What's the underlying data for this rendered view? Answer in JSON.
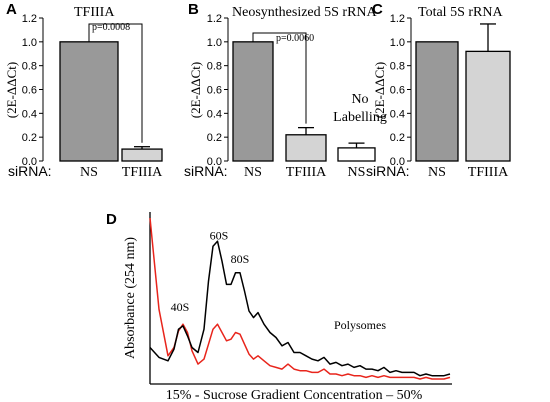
{
  "chart_data": [
    {
      "panel": "A",
      "type": "bar",
      "title": "TFIIIA",
      "ylabel": "(2E-ΔΔCt)",
      "ylim": [
        0,
        1.2
      ],
      "yticks": [
        "0.0",
        "0.2",
        "0.4",
        "0.6",
        "0.8",
        "1.0",
        "1.2"
      ],
      "row_label": "siRNA:",
      "categories": [
        "NS",
        "TFIIIA"
      ],
      "values": [
        1.0,
        0.1
      ],
      "errors": [
        0,
        0.02
      ],
      "bar_colors": [
        "#999999",
        "#d4d4d4"
      ],
      "comparison": {
        "from": 0,
        "to": 1,
        "label": "p=0.0008"
      }
    },
    {
      "panel": "B",
      "type": "bar",
      "title": "Neosynthesized 5S rRNA",
      "ylabel": "(2E-ΔΔCt)",
      "ylim": [
        0,
        1.2
      ],
      "yticks": [
        "0.0",
        "0.2",
        "0.4",
        "0.6",
        "0.8",
        "1.0",
        "1.2"
      ],
      "row_label": "siRNA:",
      "categories": [
        "NS",
        "TFIIIA",
        "NS"
      ],
      "values": [
        1.0,
        0.22,
        0.11
      ],
      "errors": [
        0,
        0.06,
        0.04
      ],
      "bar_colors": [
        "#999999",
        "#d4d4d4",
        "#ffffff"
      ],
      "comparison": {
        "from": 0,
        "to": 1,
        "label": "p=0.0060"
      },
      "annotation": [
        "No",
        "Labelling"
      ]
    },
    {
      "panel": "C",
      "type": "bar",
      "title": "Total 5S rRNA",
      "ylabel": "(2E-ΔΔCt)",
      "ylim": [
        0,
        1.2
      ],
      "yticks": [
        "0.0",
        "0.2",
        "0.4",
        "0.6",
        "0.8",
        "1.0",
        "1.2"
      ],
      "row_label": "siRNA:",
      "categories": [
        "NS",
        "TFIIIA"
      ],
      "values": [
        1.0,
        0.92
      ],
      "errors": [
        0,
        0.23
      ],
      "bar_colors": [
        "#999999",
        "#d4d4d4"
      ]
    },
    {
      "panel": "D",
      "type": "line",
      "ylabel": "Absorbance (254 nm)",
      "xlabel": "15% - Sucrose Gradient Concentration – 50%",
      "xlim": [
        0,
        100
      ],
      "ylim": [
        0,
        100
      ],
      "peak_labels": [
        {
          "text": "40S",
          "x": 10,
          "y": 44
        },
        {
          "text": "60S",
          "x": 23,
          "y": 87
        },
        {
          "text": "80S",
          "x": 30,
          "y": 73
        },
        {
          "text": "Polysomes",
          "x": 70,
          "y": 33
        }
      ],
      "series": [
        {
          "color": "#000000",
          "x": [
            0,
            3,
            6,
            8,
            9.5,
            11,
            12.5,
            14,
            16,
            18,
            19.5,
            21,
            22.5,
            24,
            25.5,
            27,
            28.5,
            30,
            31.5,
            33,
            34.5,
            36,
            38,
            40,
            42,
            44,
            46,
            48,
            50,
            52,
            54,
            56,
            58,
            60,
            62,
            64,
            66,
            68,
            70,
            72,
            74,
            76,
            78,
            80,
            82,
            84,
            86,
            88,
            90,
            92,
            94,
            96,
            98,
            100
          ],
          "y": [
            22,
            16,
            14,
            21,
            33,
            35,
            29,
            22,
            19,
            33,
            62,
            83,
            86,
            74,
            60,
            60,
            67,
            67,
            56,
            44,
            40,
            43,
            36,
            31,
            28,
            23,
            25,
            19,
            19,
            17,
            15,
            14,
            16,
            12,
            13,
            11,
            12,
            10,
            11,
            9,
            9,
            8,
            10,
            7,
            8,
            7,
            7,
            7,
            5,
            6,
            5,
            5,
            5,
            6
          ]
        },
        {
          "color": "#e8251c",
          "x": [
            0,
            3,
            6,
            8,
            9.5,
            11,
            12.5,
            14,
            16,
            18,
            19.5,
            21,
            22.5,
            24,
            25.5,
            27,
            28.5,
            30,
            31.5,
            33,
            34.5,
            36,
            38,
            40,
            42,
            44,
            46,
            48,
            50,
            52,
            54,
            56,
            58,
            60,
            62,
            64,
            66,
            68,
            70,
            72,
            74,
            76,
            78,
            80,
            82,
            84,
            86,
            88,
            90,
            92,
            94,
            96,
            98,
            100
          ],
          "y": [
            100,
            45,
            17,
            22,
            32,
            36,
            31,
            20,
            12,
            15,
            24,
            33,
            36,
            31,
            26,
            27,
            31,
            30,
            24,
            18,
            15,
            17,
            14,
            11,
            10,
            9,
            12,
            9,
            8,
            8,
            7,
            7,
            9,
            6,
            6,
            5,
            6,
            5,
            5,
            4,
            5,
            4,
            5,
            4,
            4,
            4,
            4,
            4,
            3,
            4,
            3,
            3,
            3,
            4
          ]
        }
      ]
    }
  ]
}
